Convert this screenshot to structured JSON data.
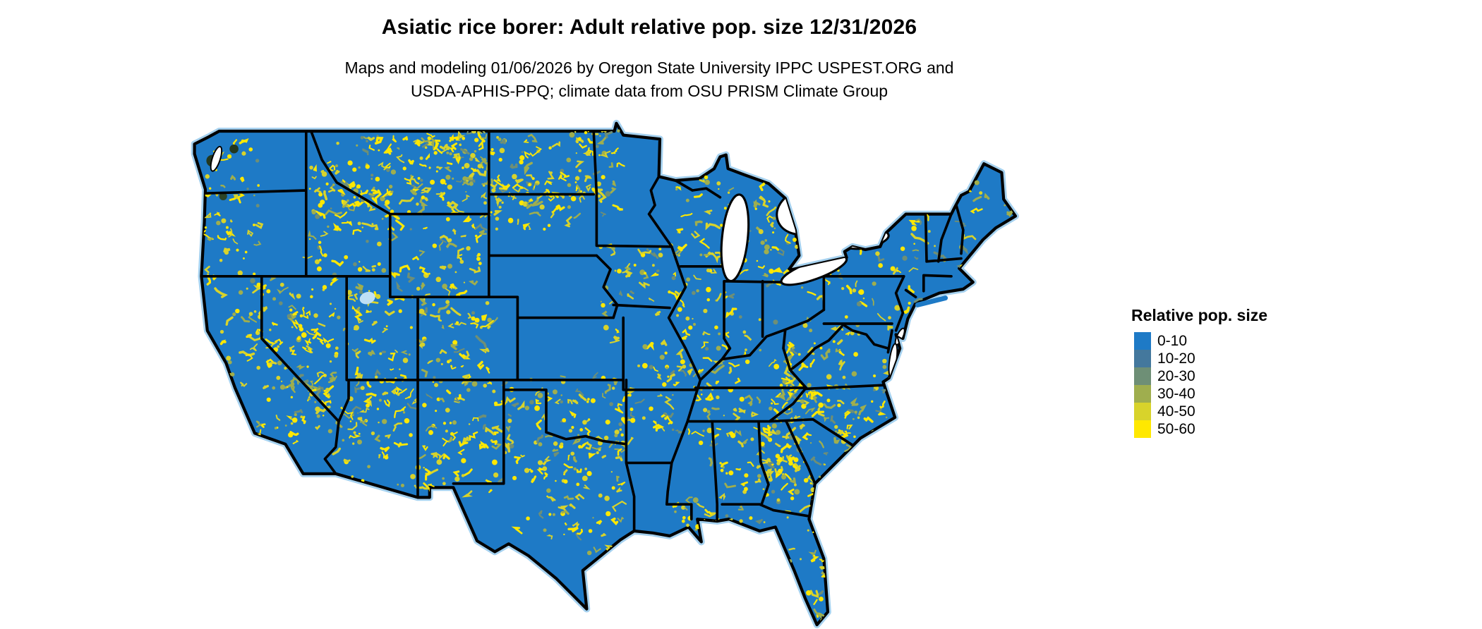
{
  "title": "Asiatic rice borer: Adult relative pop. size 12/31/2026",
  "subtitle_line1": "Maps and modeling 01/06/2026 by Oregon State University IPPC USPEST.ORG and",
  "subtitle_line2": "USDA-APHIS-PPQ; climate data from OSU PRISM Climate Group",
  "legend": {
    "title": "Relative pop. size",
    "items": [
      {
        "label": "0-10",
        "color": "#1E7AC6"
      },
      {
        "label": "10-20",
        "color": "#44789D"
      },
      {
        "label": "20-30",
        "color": "#6E8F76"
      },
      {
        "label": "30-40",
        "color": "#9FAE4E"
      },
      {
        "label": "40-50",
        "color": "#D8D32B"
      },
      {
        "label": "50-60",
        "color": "#FFE800"
      }
    ]
  },
  "map": {
    "land_color": "#1E7AC6",
    "water_fringe_color": "#A5D1EF",
    "border_color": "#000000"
  }
}
